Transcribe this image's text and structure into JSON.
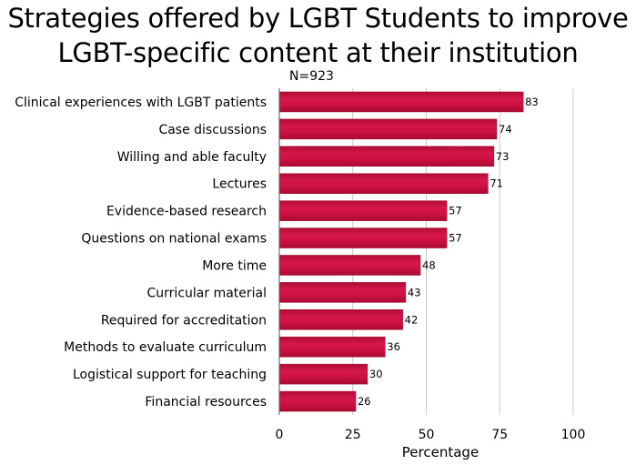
{
  "chart_data": {
    "type": "bar",
    "orientation": "horizontal",
    "title": "Strategies offered by LGBT Students to improve LGBT-specific content at their institution",
    "title_lines": [
      "Strategies offered by LGBT Students to improve",
      "LGBT-specific content at their institution"
    ],
    "subtitle": "N=923",
    "xlabel": "Percentage",
    "ylabel": "",
    "xlim": [
      0,
      100
    ],
    "xticks": [
      0,
      25,
      50,
      75,
      100
    ],
    "grid": true,
    "categories": [
      "Clinical experiences with LGBT patients",
      "Case discussions",
      "Willing and able faculty",
      "Lectures",
      "Evidence-based research",
      "Questions on national exams",
      "More time",
      "Curricular material",
      "Required for accreditation",
      "Methods to evaluate curriculum",
      "Logistical support for teaching",
      "Financial resources"
    ],
    "values": [
      83,
      74,
      73,
      71,
      57,
      57,
      48,
      43,
      42,
      36,
      30,
      26
    ],
    "colors": {
      "bar": "#c8103e",
      "bar_dark": "#a00a30",
      "grid": "#c8c8c8",
      "axis": "#6e6e6e"
    }
  }
}
